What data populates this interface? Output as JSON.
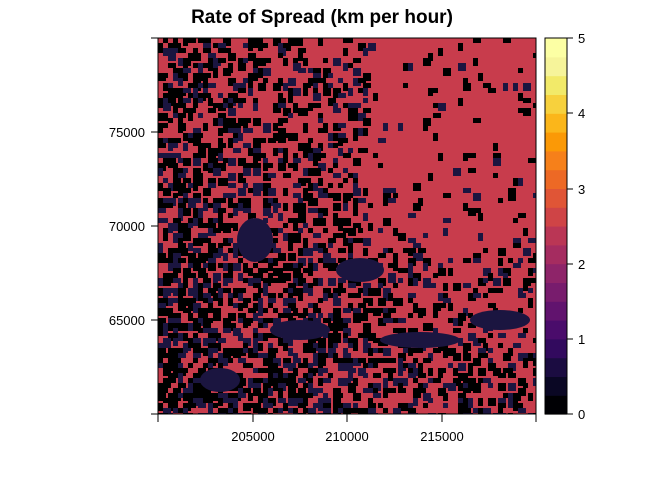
{
  "title": "Rate of Spread (km per hour)",
  "map": {
    "x_ticks": [
      "205000",
      "210000",
      "215000"
    ],
    "y_ticks": [
      "75000",
      "70000",
      "65000"
    ],
    "x_range": [
      200000,
      220000
    ],
    "y_range": [
      60000,
      80000
    ],
    "dominant_color": "#C83C4C",
    "low_color": "#000000",
    "mid_low_color": "#1B1540"
  },
  "legend": {
    "ticks": [
      "5",
      "4",
      "3",
      "2",
      "1",
      "0"
    ],
    "range": [
      0,
      5
    ],
    "palette": [
      "#000004",
      "#0A0724",
      "#1B0C41",
      "#320A5E",
      "#4A0C6B",
      "#61136E",
      "#781C6D",
      "#8E2469",
      "#A52C60",
      "#BA3655",
      "#CF4446",
      "#E05536",
      "#ED6925",
      "#F6801A",
      "#FB9906",
      "#FBB61A",
      "#F7D13D",
      "#F2EA69",
      "#F6F49A",
      "#FCFFA4"
    ]
  }
}
